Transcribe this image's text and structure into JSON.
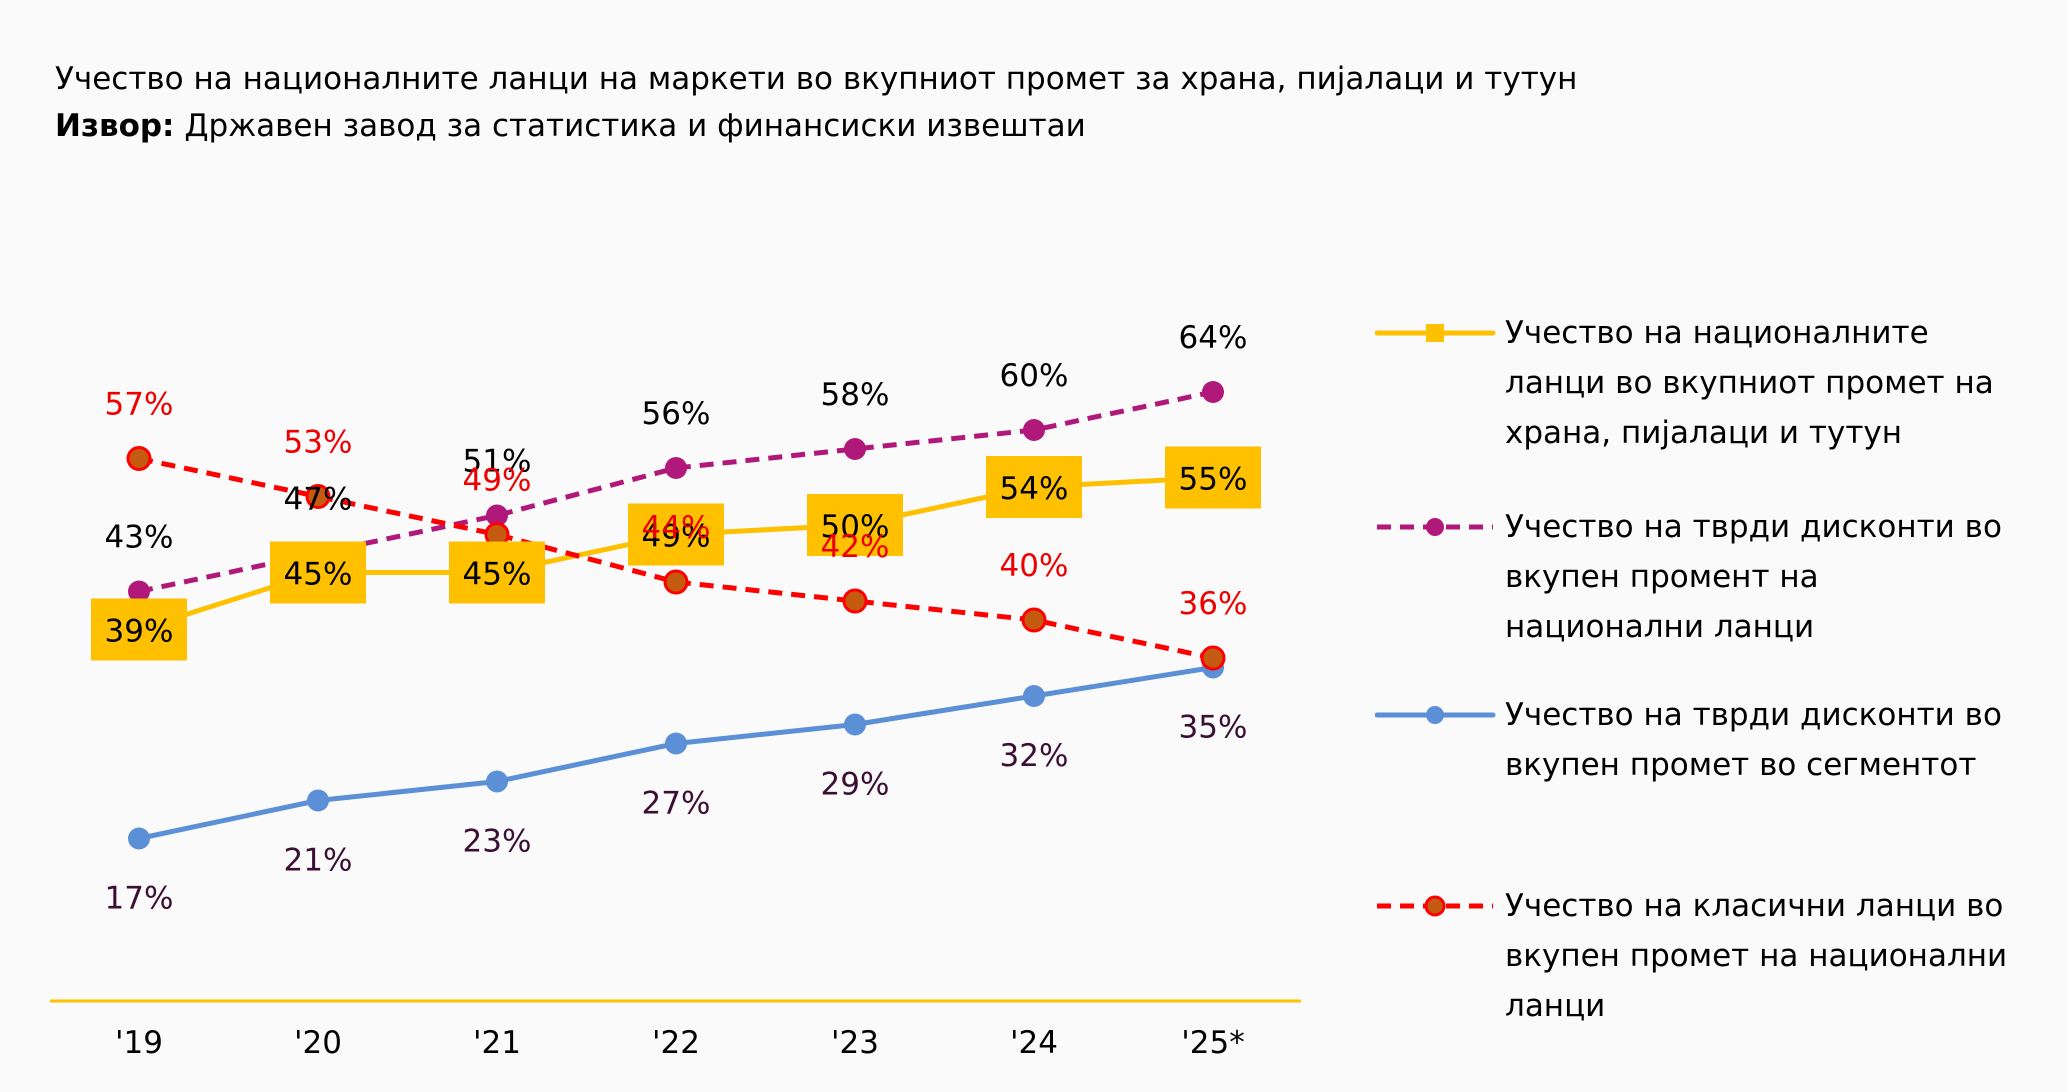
{
  "header": {
    "title": "Учество на националните ланци на маркети во вкупниот промет за храна, пијалаци и тутун",
    "source_label": "Извор:",
    "source_text": "Државен завод за статистика и финансиски извештаи"
  },
  "chart_data": {
    "type": "line",
    "title": "Учество на националните ланци на маркети во вкупниот промет за храна, пијалаци и тутун",
    "subtitle": "Извор: Државен завод за статистика и финансиски извештаи",
    "xlabel": "",
    "ylabel": "",
    "categories": [
      "'19",
      "'20",
      "'21",
      "'22",
      "'23",
      "'24",
      "'25*"
    ],
    "ylim": [
      0,
      70
    ],
    "grid": false,
    "legend_position": "right",
    "series": [
      {
        "id": "national",
        "name": "Учество на националните ланци во вкупниот промет на храна, пијалаци и тутун",
        "values": [
          39,
          45,
          45,
          49,
          50,
          54,
          55
        ],
        "labels": [
          "39%",
          "45%",
          "45%",
          "49%",
          "50%",
          "54%",
          "55%"
        ],
        "color": "#FFC000",
        "dash": "solid",
        "marker": "square",
        "label_style": "boxed"
      },
      {
        "id": "hard_discount_national",
        "name": "Учество на тврди дисконти во вкупен промент на национални ланци",
        "values": [
          43,
          47,
          51,
          56,
          58,
          60,
          64
        ],
        "labels": [
          "43%",
          "47%",
          "51%",
          "56%",
          "58%",
          "60%",
          "64%"
        ],
        "color": "#B0197A",
        "label_color": "#000000",
        "dash": "dashed",
        "marker": "circle",
        "label_style": "above"
      },
      {
        "id": "hard_discount_segment",
        "name": "Учество на тврди дисконти во вкупен промет во сегментот",
        "values": [
          17,
          21,
          23,
          27,
          29,
          32,
          35
        ],
        "labels": [
          "17%",
          "21%",
          "23%",
          "27%",
          "29%",
          "32%",
          "35%"
        ],
        "color": "#5B8FD6",
        "label_color": "#3B0F33",
        "dash": "solid",
        "marker": "circle",
        "label_style": "below"
      },
      {
        "id": "classic_chains",
        "name": "Учество на класични ланци во вкупен промет на национални ланци",
        "values": [
          57,
          53,
          49,
          44,
          42,
          40,
          36
        ],
        "labels": [
          "57%",
          "53%",
          "49%",
          "44%",
          "42%",
          "40%",
          "36%"
        ],
        "color": "#FF0000",
        "marker_fill": "#C55A11",
        "label_color": "#EE0000",
        "dash": "dashed",
        "marker": "circle",
        "label_style": "above"
      }
    ]
  },
  "legend": {
    "items": [
      {
        "lines": [
          "Учество на националните",
          "ланци во вкупниот промет на",
          "храна, пијалаци и тутун"
        ]
      },
      {
        "lines": [
          "Учество на тврди дисконти во",
          "вкупен промент на",
          "национални ланци"
        ]
      },
      {
        "lines": [
          "Учество на тврди дисконти во",
          "вкупен промет во сегментот"
        ]
      },
      {
        "lines": [
          "Учество на класични ланци во",
          "вкупен промет на национални",
          "ланци"
        ]
      }
    ]
  }
}
